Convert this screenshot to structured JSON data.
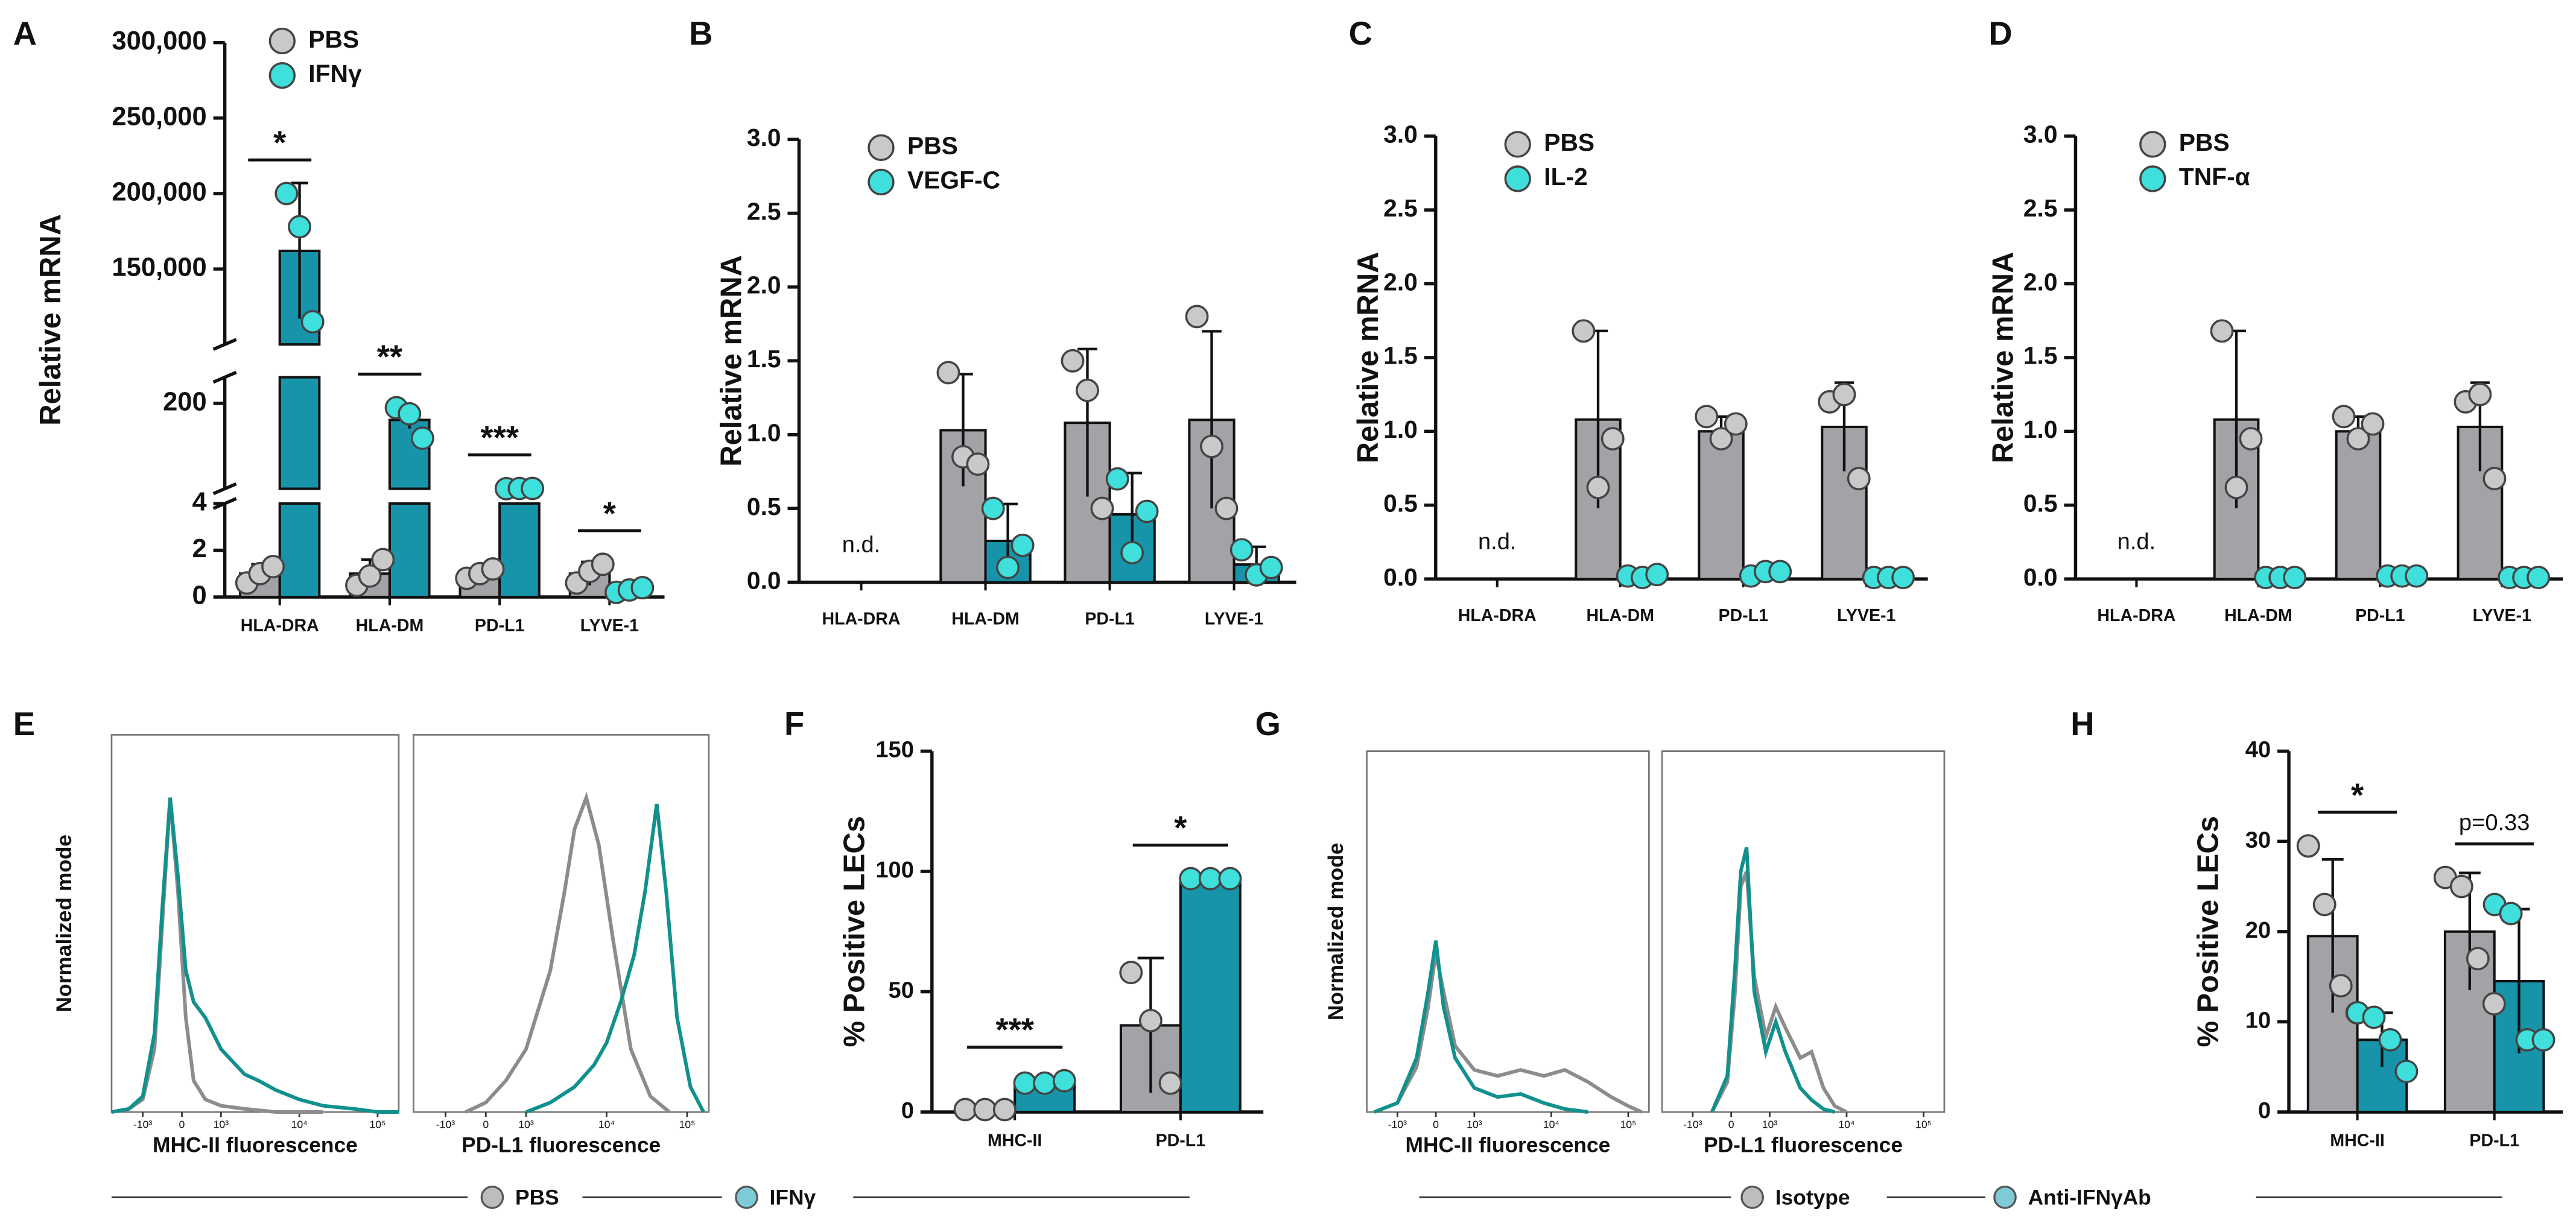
{
  "chart_data": [
    {
      "type": "bar",
      "panel": "A",
      "ylabel": "Relative mRNA",
      "legend": "upper left",
      "categories": [
        "HLA-DRA",
        "HLA-DM",
        "PD-L1",
        "LYVE-1"
      ],
      "y_segments": [
        {
          "ylim": [
            0,
            4
          ],
          "yticks": [
            0,
            2,
            4
          ]
        },
        {
          "ylim": [
            4,
            260
          ],
          "yticks": [
            200
          ]
        },
        {
          "ylim": [
            100000,
            300000
          ],
          "yticks": [
            {
              "value": 150000,
              "label": "150,000"
            },
            {
              "value": 200000,
              "label": "200,000"
            },
            {
              "value": 250000,
              "label": "250,000"
            },
            {
              "value": 300000,
              "label": "300,000"
            }
          ]
        }
      ],
      "series": [
        {
          "name": "PBS",
          "color": "#a3a3a7",
          "point_color": "#c9c9c9",
          "values": [
            1,
            1,
            1,
            1
          ],
          "errors": [
            0.4,
            0.6,
            0.2,
            0.5
          ],
          "points": [
            [
              0.6,
              1,
              1.3
            ],
            [
              0.5,
              0.9,
              1.6
            ],
            [
              0.8,
              1,
              1.2
            ],
            [
              0.6,
              1.1,
              1.4
            ]
          ]
        },
        {
          "name": "IFNγ",
          "color": "#1794aa",
          "point_color": "#3fe0dc",
          "values": [
            162000,
            162,
            4.5,
            0.3
          ],
          "errors": [
            45000,
            20,
            0.2,
            0.1
          ],
          "points": [
            [
              200000,
              178000,
              115000
            ],
            [
              190,
              176,
              120
            ],
            [
              4.3,
              4.6,
              4.7
            ],
            [
              0.2,
              0.3,
              0.4
            ]
          ]
        }
      ],
      "significance": [
        "*",
        "**",
        "***",
        "*"
      ]
    },
    {
      "type": "bar",
      "panel": "B",
      "ylabel": "Relative mRNA",
      "legend": "upper left",
      "missing_label": "n.d.",
      "categories": [
        "HLA-DRA",
        "HLA-DM",
        "PD-L1",
        "LYVE-1"
      ],
      "ylim": [
        0,
        3
      ],
      "yticks": [
        {
          "value": 0,
          "label": "0.0"
        },
        0.5,
        {
          "value": 1,
          "label": "1.0"
        },
        1.5,
        {
          "value": 2,
          "label": "2.0"
        },
        2.5,
        {
          "value": 3,
          "label": "3.0"
        }
      ],
      "series": [
        {
          "name": "PBS",
          "color": "#a3a3a7",
          "point_color": "#c9c9c9",
          "values": [
            null,
            1.03,
            1.08,
            1.1
          ],
          "errors": [
            null,
            0.38,
            0.5,
            0.6
          ],
          "points": [
            null,
            [
              1.42,
              0.85,
              0.8
            ],
            [
              1.5,
              1.3,
              0.5
            ],
            [
              1.8,
              0.92,
              0.5
            ]
          ]
        },
        {
          "name": "VEGF-C",
          "color": "#1794aa",
          "point_color": "#3fe0dc",
          "values": [
            null,
            0.28,
            0.46,
            0.12
          ],
          "errors": [
            null,
            0.25,
            0.28,
            0.12
          ],
          "points": [
            null,
            [
              0.5,
              0.1,
              0.25
            ],
            [
              0.7,
              0.2,
              0.48
            ],
            [
              0.22,
              0.05,
              0.1
            ]
          ]
        }
      ]
    },
    {
      "type": "bar",
      "panel": "C",
      "ylabel": "Relative mRNA",
      "legend": "upper left",
      "missing_label": "n.d.",
      "categories": [
        "HLA-DRA",
        "HLA-DM",
        "PD-L1",
        "LYVE-1"
      ],
      "ylim": [
        0,
        3
      ],
      "yticks": [
        {
          "value": 0,
          "label": "0.0"
        },
        0.5,
        {
          "value": 1,
          "label": "1.0"
        },
        1.5,
        {
          "value": 2,
          "label": "2.0"
        },
        2.5,
        {
          "value": 3,
          "label": "3.0"
        }
      ],
      "series": [
        {
          "name": "PBS",
          "color": "#a3a3a7",
          "point_color": "#c9c9c9",
          "values": [
            null,
            1.08,
            1,
            1.03
          ],
          "errors": [
            null,
            0.6,
            0.1,
            0.3
          ],
          "points": [
            null,
            [
              1.68,
              0.62,
              0.95
            ],
            [
              1.1,
              0.95,
              1.05
            ],
            [
              1.2,
              1.25,
              0.68
            ]
          ]
        },
        {
          "name": "IL-2",
          "color": "#1794aa",
          "point_color": "#3fe0dc",
          "values": [
            null,
            0.02,
            0.04,
            0.01
          ],
          "errors": [
            null,
            0.01,
            0.01,
            0.01
          ],
          "points": [
            null,
            [
              0.02,
              0.01,
              0.03
            ],
            [
              0.02,
              0.05,
              0.05
            ],
            [
              0.01,
              0.01,
              0.01
            ]
          ]
        }
      ]
    },
    {
      "type": "bar",
      "panel": "D",
      "ylabel": "Relative mRNA",
      "legend": "upper left",
      "missing_label": "n.d.",
      "categories": [
        "HLA-DRA",
        "HLA-DM",
        "PD-L1",
        "LYVE-1"
      ],
      "ylim": [
        0,
        3
      ],
      "yticks": [
        {
          "value": 0,
          "label": "0.0"
        },
        0.5,
        {
          "value": 1,
          "label": "1.0"
        },
        1.5,
        {
          "value": 2,
          "label": "2.0"
        },
        2.5,
        {
          "value": 3,
          "label": "3.0"
        }
      ],
      "series": [
        {
          "name": "PBS",
          "color": "#a3a3a7",
          "point_color": "#c9c9c9",
          "values": [
            null,
            1.08,
            1,
            1.03
          ],
          "errors": [
            null,
            0.6,
            0.1,
            0.3
          ],
          "points": [
            null,
            [
              1.68,
              0.62,
              0.95
            ],
            [
              1.1,
              0.95,
              1.05
            ],
            [
              1.2,
              1.25,
              0.68
            ]
          ]
        },
        {
          "name": "TNF-α",
          "color": "#1794aa",
          "point_color": "#3fe0dc",
          "values": [
            null,
            0.01,
            0.02,
            0.01
          ],
          "errors": [
            null,
            0.01,
            0.01,
            0.01
          ],
          "points": [
            null,
            [
              0.01,
              0.01,
              0.01
            ],
            [
              0.02,
              0.02,
              0.02
            ],
            [
              0.01,
              0.01,
              0.01
            ]
          ]
        }
      ]
    },
    {
      "type": "density",
      "panel": "E",
      "ylabel": "Normalized mode",
      "xscale": "biexponential",
      "xlim": [
        -2500,
        186000
      ],
      "ylim": [
        0,
        120
      ],
      "xticks": [
        {
          "value": -1000,
          "label": "-10³"
        },
        0,
        {
          "value": 1000,
          "label": "10³"
        },
        {
          "value": 10000,
          "label": "10⁴"
        },
        {
          "value": 100000,
          "label": "10⁵"
        }
      ],
      "legend": [
        {
          "name": "PBS",
          "color": "#bdbdbd"
        },
        {
          "name": "IFNγ",
          "color": "#7ccbd6"
        }
      ],
      "plots": [
        {
          "xlabel": "MHC-II fluorescence",
          "series": [
            {
              "color": "#8c8c8c",
              "x": [
                -2500,
                -1500,
                -1000,
                -700,
                -500,
                -300,
                -100,
                100,
                300,
                600,
                1000,
                2000,
                5000,
                20000
              ],
              "values": [
                0,
                1,
                4,
                20,
                60,
                100,
                70,
                30,
                10,
                4,
                2,
                1,
                0,
                0
              ]
            },
            {
              "color": "#12908e",
              "x": [
                -2500,
                -1500,
                -1000,
                -700,
                -500,
                -300,
                -100,
                100,
                300,
                600,
                1000,
                2000,
                3000,
                5000,
                10000,
                20000,
                50000,
                100000,
                186000
              ],
              "values": [
                0,
                1,
                5,
                25,
                65,
                100,
                75,
                45,
                35,
                30,
                20,
                12,
                10,
                7,
                4,
                2,
                1,
                0,
                0
              ]
            }
          ]
        },
        {
          "xlabel": "PD-L1 fluorescence",
          "series": [
            {
              "color": "#8c8c8c",
              "x": [
                -500,
                0,
                500,
                1000,
                2000,
                3000,
                4000,
                5600,
                8000,
                12000,
                20000,
                35000,
                60000
              ],
              "values": [
                0,
                3,
                10,
                20,
                45,
                70,
                90,
                100,
                85,
                55,
                20,
                5,
                0
              ]
            },
            {
              "color": "#12908e",
              "x": [
                1000,
                2000,
                4000,
                7000,
                10000,
                15000,
                22000,
                30000,
                42000,
                55000,
                75000,
                110000,
                160000
              ],
              "values": [
                0,
                3,
                8,
                15,
                22,
                35,
                50,
                70,
                98,
                70,
                30,
                8,
                0
              ]
            }
          ]
        }
      ]
    },
    {
      "type": "bar",
      "panel": "F",
      "ylabel": "% Positive LECs",
      "categories": [
        "MHC-II",
        "PD-L1"
      ],
      "ylim": [
        0,
        150
      ],
      "yticks": [
        0,
        50,
        100,
        150
      ],
      "series": [
        {
          "color": "#a3a3a7",
          "point_color": "#c9c9c9",
          "values": [
            1,
            36
          ],
          "errors": [
            0.5,
            28
          ],
          "points": [
            [
              1,
              1,
              1
            ],
            [
              58,
              38,
              12
            ]
          ]
        },
        {
          "color": "#1794aa",
          "point_color": "#3fe0dc",
          "values": [
            12,
            97
          ],
          "errors": [
            1,
            1
          ],
          "points": [
            [
              12,
              12,
              13
            ],
            [
              97,
              97,
              97
            ]
          ]
        }
      ],
      "significance": [
        "***",
        "*"
      ]
    },
    {
      "type": "density",
      "panel": "G",
      "ylabel": "Normalized mode",
      "xscale": "biexponential",
      "xlim": [
        -2500,
        186000
      ],
      "ylim": [
        0,
        120
      ],
      "xticks": [
        {
          "value": -1000,
          "label": "-10³"
        },
        0,
        {
          "value": 1000,
          "label": "10³"
        },
        {
          "value": 10000,
          "label": "10⁴"
        },
        {
          "value": 100000,
          "label": "10⁵"
        }
      ],
      "legend": [
        {
          "name": "Isotype",
          "color": "#bdbdbd"
        },
        {
          "name": "Anti-IFNγAb",
          "color": "#7ccbd6"
        }
      ],
      "plots": [
        {
          "xlabel": "MHC-II fluorescence",
          "series": [
            {
              "color": "#8c8c8c",
              "x": [
                -2000,
                -1000,
                -500,
                -200,
                0,
                200,
                500,
                1000,
                2000,
                4000,
                8000,
                15000,
                30000,
                60000,
                100000,
                150000
              ],
              "values": [
                0,
                3,
                15,
                35,
                53,
                40,
                22,
                14,
                12,
                14,
                12,
                14,
                10,
                5,
                2,
                0
              ]
            },
            {
              "color": "#12908e",
              "x": [
                -2000,
                -1000,
                -500,
                -200,
                0,
                200,
                500,
                1000,
                2000,
                4000,
                8000,
                15000,
                30000
              ],
              "values": [
                0,
                3,
                18,
                40,
                57,
                35,
                18,
                8,
                5,
                6,
                3,
                1,
                0
              ]
            }
          ]
        },
        {
          "xlabel": "PD-L1 fluorescence",
          "series": [
            {
              "color": "#8c8c8c",
              "x": [
                -500,
                -100,
                100,
                250,
                400,
                600,
                900,
                1200,
                1600,
                2500,
                3500,
                5000,
                7000,
                10000
              ],
              "values": [
                0,
                10,
                40,
                75,
                80,
                45,
                25,
                35,
                28,
                18,
                20,
                8,
                2,
                0
              ]
            },
            {
              "color": "#12908e",
              "x": [
                -500,
                -100,
                100,
                250,
                400,
                600,
                900,
                1200,
                1600,
                2500,
                3500,
                5000,
                7000
              ],
              "values": [
                0,
                12,
                48,
                80,
                88,
                40,
                20,
                30,
                20,
                8,
                4,
                1,
                0
              ]
            }
          ]
        }
      ]
    },
    {
      "type": "bar",
      "panel": "H",
      "ylabel": "% Positive LECs",
      "categories": [
        "MHC-II",
        "PD-L1"
      ],
      "ylim": [
        0,
        40
      ],
      "yticks": [
        0,
        10,
        20,
        30,
        40
      ],
      "series": [
        {
          "color": "#a3a3a7",
          "point_color": "#c9c9c9",
          "values": [
            19.5,
            20
          ],
          "errors": [
            8.5,
            6.5
          ],
          "points": [
            [
              29.5,
              23,
              14,
              11
            ],
            [
              26,
              25,
              17,
              12
            ]
          ]
        },
        {
          "color": "#1794aa",
          "point_color": "#3fe0dc",
          "values": [
            8,
            14.5
          ],
          "errors": [
            3,
            8
          ],
          "points": [
            [
              11,
              10.5,
              8,
              4.5
            ],
            [
              23,
              22,
              8,
              8
            ]
          ]
        }
      ],
      "significance": [
        "*",
        "p=0.33"
      ]
    }
  ]
}
